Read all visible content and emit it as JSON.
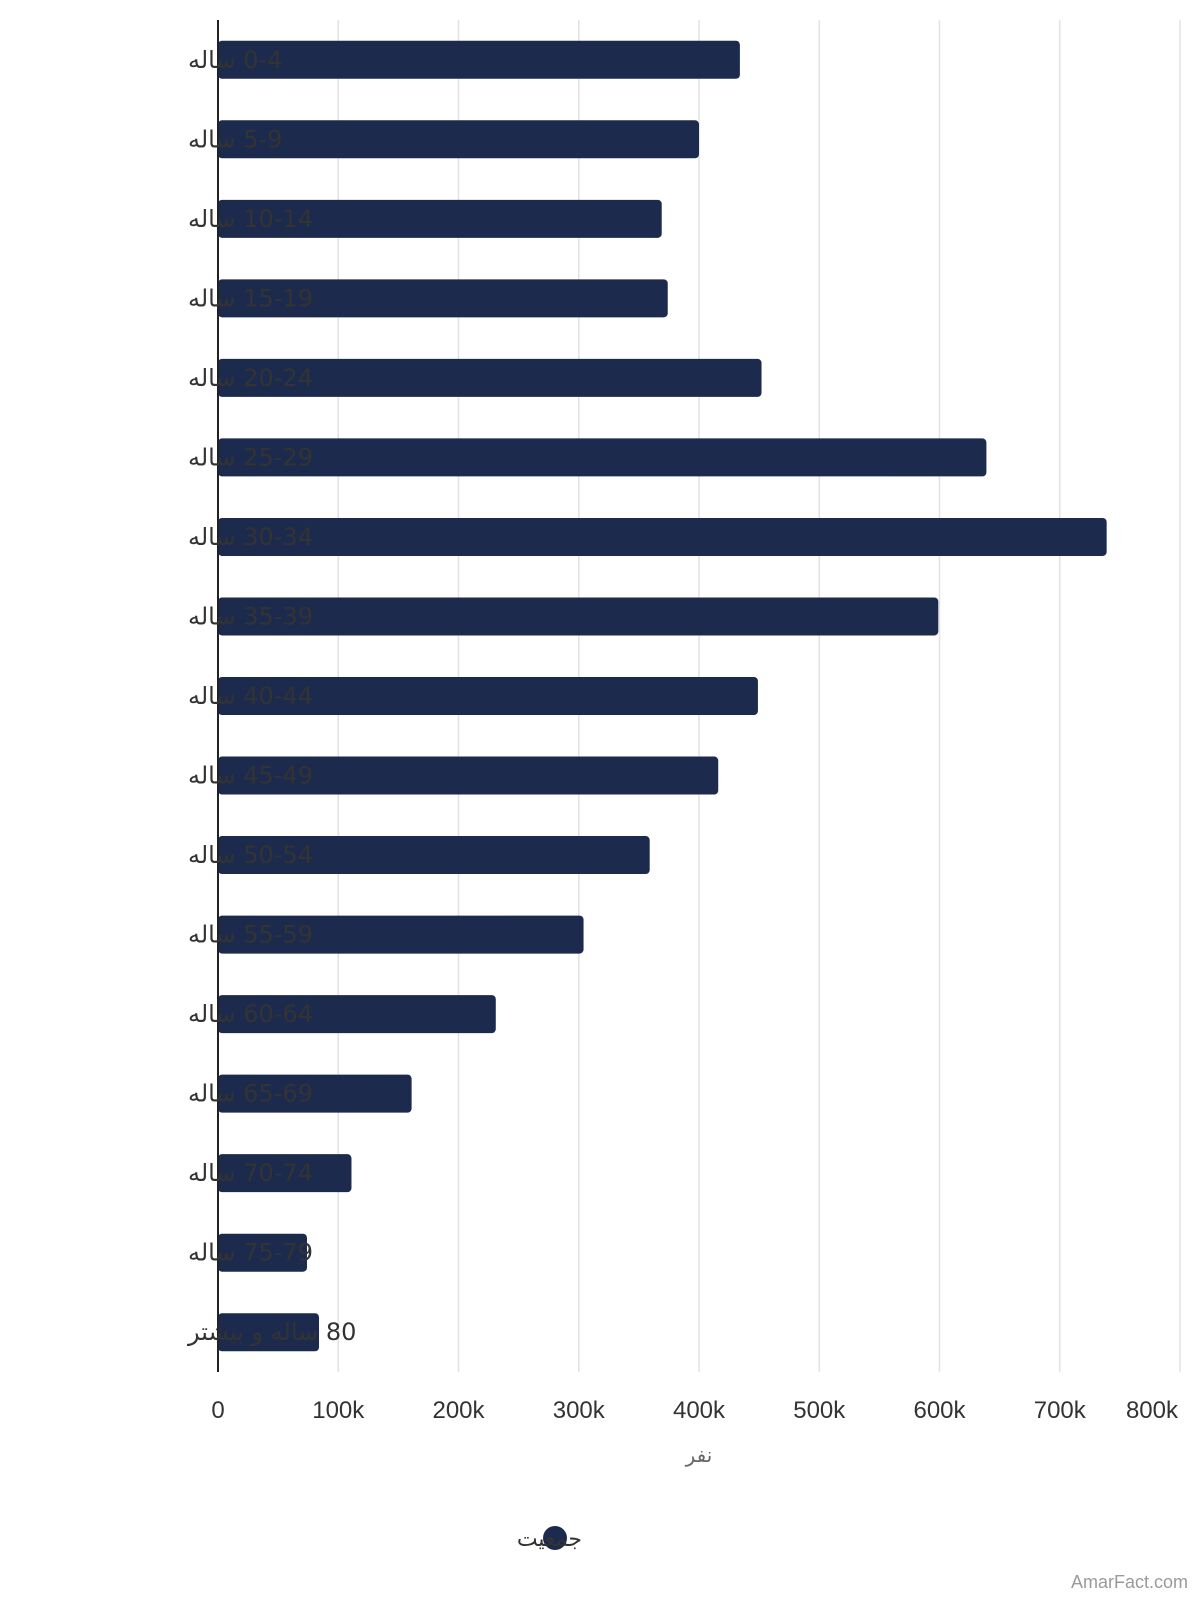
{
  "chart_data": {
    "type": "bar",
    "orientation": "horizontal",
    "categories": [
      "0-4 ساله",
      "5-9 ساله",
      "10-14 ساله",
      "15-19 ساله",
      "20-24 ساله",
      "25-29 ساله",
      "30-34 ساله",
      "35-39 ساله",
      "40-44 ساله",
      "45-49 ساله",
      "50-54 ساله",
      "55-59 ساله",
      "60-64 ساله",
      "65-69 ساله",
      "70-74 ساله",
      "75-79 ساله",
      "80 ساله و بیشتر"
    ],
    "series": [
      {
        "name": "جمعیت",
        "values": [
          434000,
          400000,
          369000,
          374000,
          452000,
          639000,
          739000,
          599000,
          449000,
          416000,
          359000,
          304000,
          231000,
          161000,
          111000,
          74000,
          84000
        ]
      }
    ],
    "xlabel": "نفر",
    "ylabel": "",
    "xlim": [
      0,
      800000
    ],
    "x_ticks": [
      0,
      100000,
      200000,
      300000,
      400000,
      500000,
      600000,
      700000,
      800000
    ],
    "x_tick_labels": [
      "0",
      "100k",
      "200k",
      "300k",
      "400k",
      "500k",
      "600k",
      "700k",
      "800k"
    ],
    "grid": true,
    "legend_position": "bottom-center",
    "bar_color": "#1c2a4d",
    "grid_color": "#e2e2e2",
    "axis_color": "#222222"
  },
  "watermark": "AmarFact.com"
}
